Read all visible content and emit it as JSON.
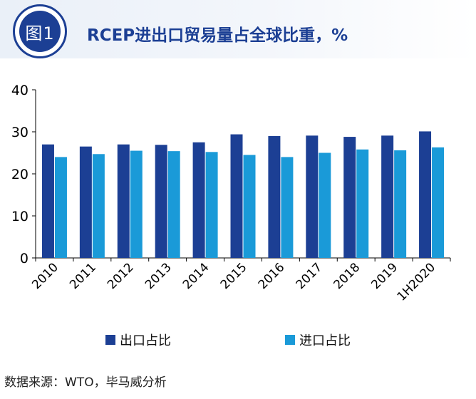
{
  "header": {
    "badge_label": "图1",
    "title": "RCEP进出口贸易量占全球比重，%"
  },
  "chart_data": {
    "type": "bar",
    "title": "RCEP进出口贸易量占全球比重，%",
    "xlabel": "",
    "ylabel": "",
    "ylim": [
      0,
      40
    ],
    "yticks": [
      0,
      10,
      20,
      30,
      40
    ],
    "grid": false,
    "legend_position": "bottom",
    "categories": [
      "2010",
      "2011",
      "2012",
      "2013",
      "2014",
      "2015",
      "2016",
      "2017",
      "2018",
      "2019",
      "1H2020"
    ],
    "series": [
      {
        "name": "出口占比",
        "color": "#1c3f94",
        "values": [
          27.0,
          26.5,
          27.0,
          26.9,
          27.5,
          29.4,
          29.0,
          29.1,
          28.8,
          29.1,
          30.1
        ]
      },
      {
        "name": "进口占比",
        "color": "#1a9ad8",
        "values": [
          24.0,
          24.7,
          25.5,
          25.4,
          25.2,
          24.5,
          24.0,
          25.0,
          25.8,
          25.6,
          26.3
        ]
      }
    ]
  },
  "source": "数据来源：WTO，毕马威分析"
}
